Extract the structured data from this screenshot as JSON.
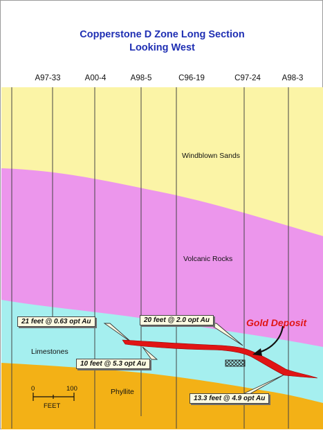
{
  "title_line1": "Copperstone D Zone Long Section",
  "title_line2": "Looking West",
  "drill_holes": [
    "A97-33",
    "A00-4",
    "A98-5",
    "C96-19",
    "C97-24",
    "A98-3"
  ],
  "layers": {
    "windblown": "Windblown Sands",
    "volcanic": "Volcanic Rocks",
    "limestones": "Limestones",
    "phyllite": "Phyllite"
  },
  "intercepts": [
    "21 feet @ 0.63 opt Au",
    "20 feet @ 2.0 opt Au",
    "10 feet @ 5.3 opt Au",
    "13.3 feet @ 4.9 opt Au"
  ],
  "gold_label": "Gold Deposit",
  "scale": {
    "zero": "0",
    "hundred": "100",
    "unit": "FEET"
  },
  "colors": {
    "sand": "#fbf4a6",
    "volcanic": "#ec96ec",
    "limestone": "#a5efef",
    "phyllite": "#f3b116",
    "ore": "#e01515",
    "title": "#1f2fb3"
  }
}
